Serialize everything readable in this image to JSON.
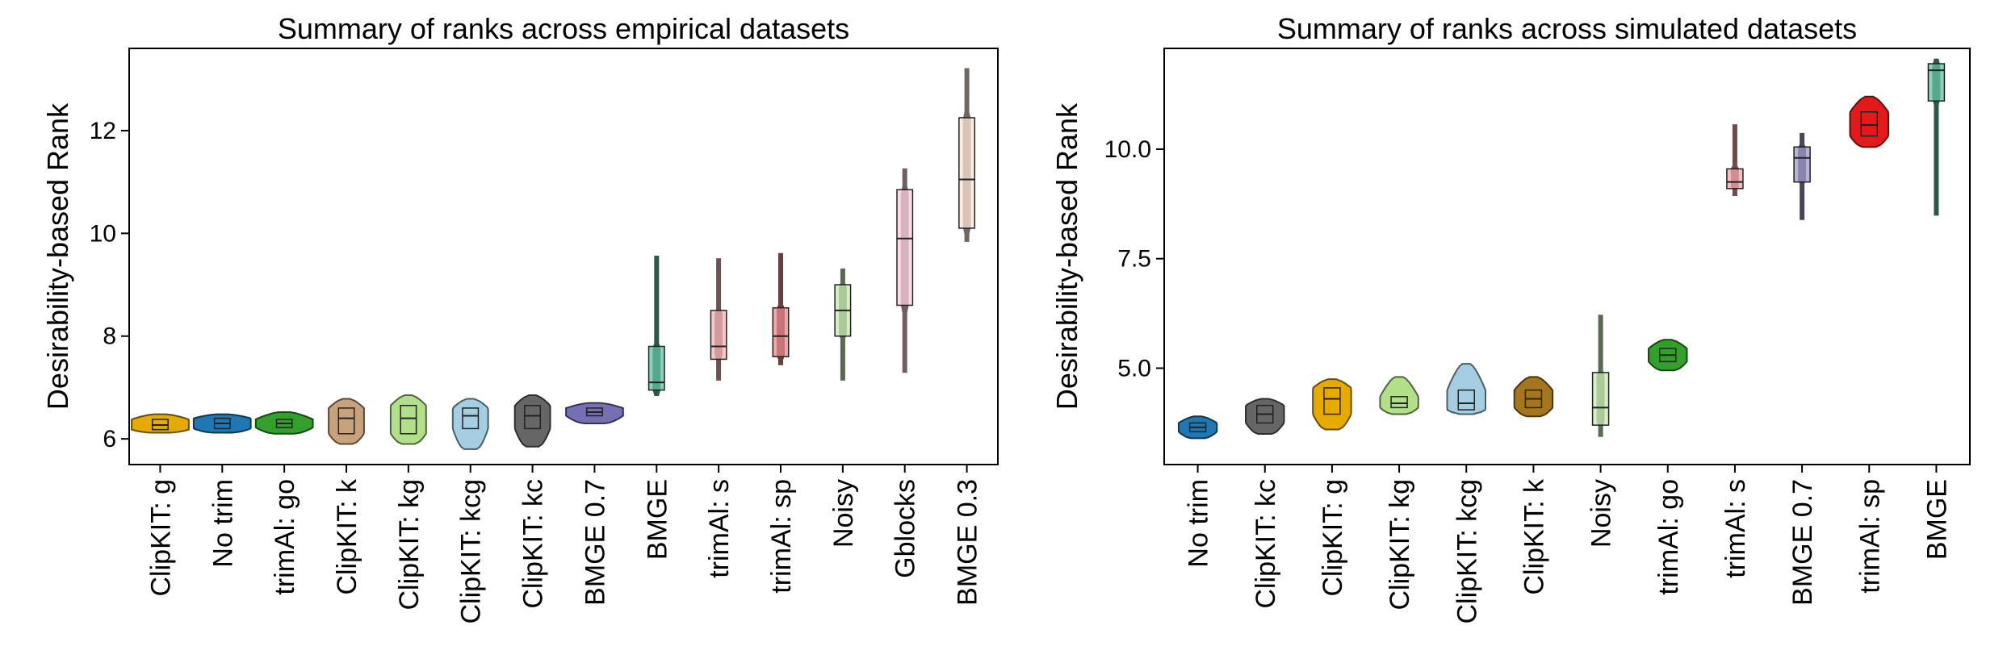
{
  "chart_data": [
    {
      "type": "violin+box",
      "title": "Summary of ranks across empirical datasets",
      "xlabel": "",
      "ylabel": "Desirability-based Rank",
      "ylim": [
        5.5,
        13.6
      ],
      "yticks": [
        6,
        8,
        10,
        12
      ],
      "yticklabels": [
        "6",
        "8",
        "10",
        "12"
      ],
      "grid": false,
      "categories": [
        "ClipKIT: g",
        "No trim",
        "trimAl: go",
        "ClipKIT: k",
        "ClipKIT: kg",
        "ClipKIT: kcg",
        "ClipKIT: kc",
        "BMGE 0.7",
        "BMGE",
        "trimAl: s",
        "trimAl: sp",
        "Noisy",
        "Gblocks",
        "BMGE 0.3"
      ],
      "colors": [
        "#e6ab02",
        "#1f78b4",
        "#33a02c",
        "#c8a27c",
        "#b2df8a",
        "#a6cee3",
        "#666666",
        "#7570b3",
        "#66c2a5",
        "#f4b6b6",
        "#e7898b",
        "#c7e9b4",
        "#fbcfe0",
        "#fce4d6"
      ],
      "series": [
        {
          "name": "ClipKIT: g",
          "min": 6.12,
          "q1": 6.18,
          "median": 6.27,
          "q3": 6.38,
          "max": 6.48
        },
        {
          "name": "No trim",
          "min": 6.12,
          "q1": 6.2,
          "median": 6.3,
          "q3": 6.4,
          "max": 6.48
        },
        {
          "name": "trimAl: go",
          "min": 6.1,
          "q1": 6.22,
          "median": 6.3,
          "q3": 6.38,
          "max": 6.52
        },
        {
          "name": "ClipKIT: k",
          "min": 5.9,
          "q1": 6.1,
          "median": 6.4,
          "q3": 6.6,
          "max": 6.78
        },
        {
          "name": "ClipKIT: kg",
          "min": 5.9,
          "q1": 6.1,
          "median": 6.4,
          "q3": 6.65,
          "max": 6.85
        },
        {
          "name": "ClipKIT: kcg",
          "min": 5.8,
          "q1": 6.2,
          "median": 6.45,
          "q3": 6.6,
          "max": 6.78
        },
        {
          "name": "ClipKIT: kc",
          "min": 5.85,
          "q1": 6.2,
          "median": 6.45,
          "q3": 6.65,
          "max": 6.85
        },
        {
          "name": "BMGE 0.7",
          "min": 6.3,
          "q1": 6.45,
          "median": 6.52,
          "q3": 6.6,
          "max": 6.7
        },
        {
          "name": "BMGE",
          "min": 6.85,
          "q1": 6.95,
          "median": 7.1,
          "q3": 7.8,
          "max": 9.55
        },
        {
          "name": "trimAl: s",
          "min": 7.15,
          "q1": 7.55,
          "median": 7.8,
          "q3": 8.5,
          "max": 9.5
        },
        {
          "name": "trimAl: sp",
          "min": 7.45,
          "q1": 7.6,
          "median": 8.0,
          "q3": 8.55,
          "max": 9.6
        },
        {
          "name": "Noisy",
          "min": 7.15,
          "q1": 8.0,
          "median": 8.5,
          "q3": 9.0,
          "max": 9.3
        },
        {
          "name": "Gblocks",
          "min": 7.3,
          "q1": 8.6,
          "median": 9.9,
          "q3": 10.85,
          "max": 11.25
        },
        {
          "name": "BMGE 0.3",
          "min": 9.85,
          "q1": 10.1,
          "median": 11.05,
          "q3": 12.25,
          "max": 13.2
        }
      ]
    },
    {
      "type": "violin+box",
      "title": "Summary of ranks across simulated datasets",
      "xlabel": "",
      "ylabel": "Desirability-based Rank",
      "ylim": [
        2.8,
        12.3
      ],
      "yticks": [
        5.0,
        7.5,
        10.0
      ],
      "yticklabels": [
        "5.0",
        "7.5",
        "10.0"
      ],
      "grid": false,
      "categories": [
        "No trim",
        "ClipKIT: kc",
        "ClipKIT: g",
        "ClipKIT: kg",
        "ClipKIT: kcg",
        "ClipKIT: k",
        "Noisy",
        "trimAl: go",
        "trimAl: s",
        "BMGE 0.7",
        "trimAl: sp",
        "BMGE"
      ],
      "colors": [
        "#1f78b4",
        "#666666",
        "#e6ab02",
        "#b2df8a",
        "#a6cee3",
        "#a6761d",
        "#c7e9b4",
        "#33a02c",
        "#f4a6a6",
        "#9e9ac8",
        "#e31a1c",
        "#66c2a5"
      ],
      "series": [
        {
          "name": "No trim",
          "min": 3.4,
          "q1": 3.55,
          "median": 3.65,
          "q3": 3.75,
          "max": 3.9
        },
        {
          "name": "ClipKIT: kc",
          "min": 3.5,
          "q1": 3.75,
          "median": 3.95,
          "q3": 4.15,
          "max": 4.3
        },
        {
          "name": "ClipKIT: g",
          "min": 3.6,
          "q1": 3.95,
          "median": 4.3,
          "q3": 4.55,
          "max": 4.75
        },
        {
          "name": "ClipKIT: kg",
          "min": 3.95,
          "q1": 4.1,
          "median": 4.2,
          "q3": 4.35,
          "max": 4.8
        },
        {
          "name": "ClipKIT: kcg",
          "min": 3.95,
          "q1": 4.05,
          "median": 4.2,
          "q3": 4.5,
          "max": 5.1
        },
        {
          "name": "ClipKIT: k",
          "min": 3.9,
          "q1": 4.1,
          "median": 4.3,
          "q3": 4.5,
          "max": 4.8
        },
        {
          "name": "Noisy",
          "min": 3.45,
          "q1": 3.7,
          "median": 4.1,
          "q3": 4.9,
          "max": 6.2
        },
        {
          "name": "trimAl: go",
          "min": 4.95,
          "q1": 5.15,
          "median": 5.3,
          "q3": 5.45,
          "max": 5.65
        },
        {
          "name": "trimAl: s",
          "min": 8.95,
          "q1": 9.1,
          "median": 9.25,
          "q3": 9.55,
          "max": 10.55
        },
        {
          "name": "BMGE 0.7",
          "min": 8.4,
          "q1": 9.25,
          "median": 9.8,
          "q3": 10.05,
          "max": 10.35
        },
        {
          "name": "trimAl: sp",
          "min": 10.05,
          "q1": 10.3,
          "median": 10.55,
          "q3": 10.85,
          "max": 11.2
        },
        {
          "name": "BMGE",
          "min": 8.5,
          "q1": 11.1,
          "median": 11.8,
          "q3": 11.95,
          "max": 12.05
        }
      ]
    }
  ]
}
